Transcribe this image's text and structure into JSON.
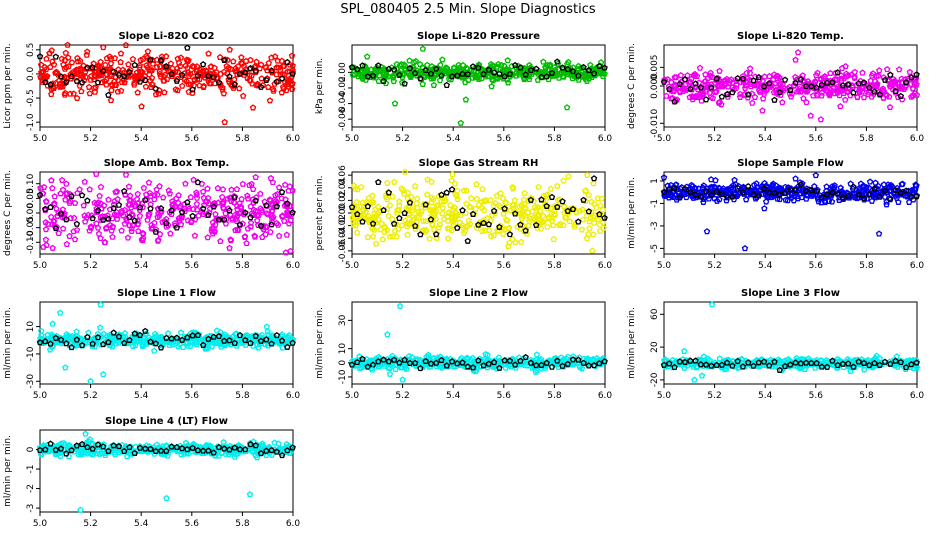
{
  "figure_title": "SPL_080405  2.5 Min. Slope Diagnostics",
  "chart_data": [
    {
      "id": "p1",
      "type": "scatter",
      "title": "Slope Li-820 CO2",
      "ylabel": "Licor ppm per min.",
      "color": "#ff0000",
      "xlim": [
        5.0,
        6.0
      ],
      "xticks": [
        5.0,
        5.2,
        5.4,
        5.6,
        5.8,
        6.0
      ],
      "xtick_labels": [
        "5.0",
        "5.2",
        "5.4",
        "5.6",
        "5.8",
        "6.0"
      ],
      "ylim": [
        -1.1,
        0.6
      ],
      "yticks": [
        -1.0,
        -0.5,
        0.0,
        0.5
      ],
      "ytick_labels": [
        "-1.0",
        "-0.5",
        "0.0",
        "0.5"
      ],
      "spread": 0.2,
      "outliers": [
        [
          5.25,
          0.55
        ],
        [
          5.75,
          0.5
        ],
        [
          5.73,
          -1.0
        ],
        [
          5.1,
          -0.4
        ]
      ]
    },
    {
      "id": "p2",
      "type": "scatter",
      "title": "Slope Li-820 Pressure",
      "ylabel": "kPa per min.",
      "color": "#00bb00",
      "xlim": [
        5.0,
        6.0
      ],
      "xticks": [
        5.0,
        5.2,
        5.4,
        5.6,
        5.8,
        6.0
      ],
      "xtick_labels": [
        "5.0",
        "5.2",
        "5.4",
        "5.6",
        "5.8",
        "6.0"
      ],
      "ylim": [
        -0.07,
        0.035
      ],
      "yticks": [
        -0.06,
        -0.04,
        -0.02,
        0.0
      ],
      "ytick_labels": [
        "-0.06",
        "-0.04",
        "-0.02",
        "0.00"
      ],
      "spread": 0.006,
      "outliers": [
        [
          5.43,
          -0.065
        ],
        [
          5.17,
          -0.04
        ],
        [
          5.45,
          -0.035
        ],
        [
          5.85,
          -0.045
        ],
        [
          5.28,
          0.03
        ],
        [
          5.06,
          0.02
        ]
      ]
    },
    {
      "id": "p3",
      "type": "scatter",
      "title": "Slope Li-820 Temp.",
      "ylabel": "degrees C per min.",
      "color": "#ee00ee",
      "xlim": [
        5.0,
        6.0
      ],
      "xticks": [
        5.0,
        5.2,
        5.4,
        5.6,
        5.8,
        6.0
      ],
      "xtick_labels": [
        "5.0",
        "5.2",
        "5.4",
        "5.6",
        "5.8",
        "6.0"
      ],
      "ylim": [
        -0.011,
        0.011
      ],
      "yticks": [
        -0.01,
        0.0,
        0.005
      ],
      "ytick_labels": [
        "-0.010",
        "0.000",
        "0.005"
      ],
      "spread": 0.002,
      "outliers": [
        [
          5.53,
          0.009
        ],
        [
          5.62,
          -0.009
        ],
        [
          5.58,
          -0.008
        ],
        [
          5.52,
          0.007
        ]
      ]
    },
    {
      "id": "p4",
      "type": "scatter",
      "title": "Slope Amb. Box Temp.",
      "ylabel": "degrees C per min.",
      "color": "#ee00ee",
      "xlim": [
        5.0,
        6.0
      ],
      "xticks": [
        5.0,
        5.2,
        5.4,
        5.6,
        5.8,
        6.0
      ],
      "xtick_labels": [
        "5.0",
        "5.2",
        "5.4",
        "5.6",
        "5.8",
        "6.0"
      ],
      "ylim": [
        -0.14,
        0.14
      ],
      "yticks": [
        -0.1,
        -0.05,
        0.0,
        0.05,
        0.1
      ],
      "ytick_labels": [
        "-0.10",
        "-0.05",
        "0.00",
        "0.05",
        "0.10"
      ],
      "spread": 0.05,
      "outliers": [
        [
          5.34,
          0.13
        ],
        [
          5.99,
          -0.13
        ],
        [
          5.05,
          -0.12
        ]
      ]
    },
    {
      "id": "p5",
      "type": "scatter",
      "title": "Slope Gas Stream RH",
      "ylabel": "percent per min.",
      "color": "#eeee00",
      "xlim": [
        5.0,
        6.0
      ],
      "xticks": [
        5.0,
        5.2,
        5.4,
        5.6,
        5.8,
        6.0
      ],
      "xtick_labels": [
        "5.0",
        "5.2",
        "5.4",
        "5.6",
        "5.8",
        "6.0"
      ],
      "ylim": [
        -0.065,
        0.065
      ],
      "yticks": [
        -0.06,
        -0.04,
        -0.02,
        0.0,
        0.02,
        0.04,
        0.06
      ],
      "ytick_labels": [
        "-0.06",
        "-0.04",
        "-0.02",
        "0.00",
        "0.02",
        "0.04",
        "0.06"
      ],
      "spread": 0.022,
      "outliers": [
        [
          5.95,
          -0.06
        ],
        [
          5.93,
          0.06
        ]
      ]
    },
    {
      "id": "p6",
      "type": "scatter",
      "title": "Slope Sample Flow",
      "ylabel": "ml/min per min.",
      "color": "#0000ee",
      "xlim": [
        5.0,
        6.0
      ],
      "xticks": [
        5.0,
        5.2,
        5.4,
        5.6,
        5.8,
        6.0
      ],
      "xtick_labels": [
        "5.0",
        "5.2",
        "5.4",
        "5.6",
        "5.8",
        "6.0"
      ],
      "ylim": [
        -5.5,
        1.8
      ],
      "yticks": [
        -5,
        -3,
        -1,
        1
      ],
      "ytick_labels": [
        "-5",
        "-3",
        "-1",
        "1"
      ],
      "spread": 0.4,
      "outliers": [
        [
          5.32,
          -5.0
        ],
        [
          5.17,
          -3.5
        ],
        [
          5.85,
          -3.7
        ],
        [
          5.52,
          1.2
        ],
        [
          5.6,
          1.5
        ],
        [
          5.0,
          1.3
        ]
      ]
    },
    {
      "id": "p7",
      "type": "scatter",
      "title": "Slope Line 1 Flow",
      "ylabel": "ml/min per min.",
      "color": "#00eeee",
      "xlim": [
        5.0,
        6.0
      ],
      "xticks": [
        5.0,
        5.2,
        5.4,
        5.6,
        5.8,
        6.0
      ],
      "xtick_labels": [
        "5.0",
        "5.2",
        "5.4",
        "5.6",
        "5.8",
        "6.0"
      ],
      "ylim": [
        -32,
        28
      ],
      "yticks": [
        -30,
        -10,
        10
      ],
      "ytick_labels": [
        "-30",
        "-10",
        "10"
      ],
      "spread": 2.5,
      "outliers": [
        [
          5.24,
          26
        ],
        [
          5.08,
          20
        ],
        [
          5.2,
          -30
        ],
        [
          5.1,
          -20
        ],
        [
          5.25,
          -25
        ],
        [
          5.05,
          12
        ]
      ]
    },
    {
      "id": "p8",
      "type": "scatter",
      "title": "Slope Line 2 Flow",
      "ylabel": "ml/min per min.",
      "color": "#00eeee",
      "xlim": [
        5.0,
        6.0
      ],
      "xticks": [
        5.0,
        5.2,
        5.4,
        5.6,
        5.8,
        6.0
      ],
      "xtick_labels": [
        "5.0",
        "5.2",
        "5.4",
        "5.6",
        "5.8",
        "6.0"
      ],
      "ylim": [
        -15,
        43
      ],
      "yticks": [
        -10,
        0,
        10,
        30
      ],
      "ytick_labels": [
        "-10",
        "0",
        "10",
        "30"
      ],
      "spread": 2.0,
      "outliers": [
        [
          5.19,
          40
        ],
        [
          5.14,
          20
        ],
        [
          5.2,
          -12
        ],
        [
          5.15,
          -8
        ],
        [
          5.08,
          -5
        ]
      ]
    },
    {
      "id": "p9",
      "type": "scatter",
      "title": "Slope Line 3 Flow",
      "ylabel": "ml/min per min.",
      "color": "#00eeee",
      "xlim": [
        5.0,
        6.0
      ],
      "xticks": [
        5.0,
        5.2,
        5.4,
        5.6,
        5.8,
        6.0
      ],
      "xtick_labels": [
        "5.0",
        "5.2",
        "5.4",
        "5.6",
        "5.8",
        "6.0"
      ],
      "ylim": [
        -25,
        75
      ],
      "yticks": [
        -20,
        20,
        60
      ],
      "ytick_labels": [
        "-20",
        "20",
        "60"
      ],
      "spread": 3.0,
      "outliers": [
        [
          5.19,
          72
        ],
        [
          5.12,
          -20
        ],
        [
          5.08,
          15
        ],
        [
          5.15,
          -15
        ]
      ]
    },
    {
      "id": "p10",
      "type": "scatter",
      "title": "Slope Line 4 (LT) Flow",
      "ylabel": "ml/min per min.",
      "color": "#00eeee",
      "xlim": [
        5.0,
        6.0
      ],
      "xticks": [
        5.0,
        5.2,
        5.4,
        5.6,
        5.8,
        6.0
      ],
      "xtick_labels": [
        "5.0",
        "5.2",
        "5.4",
        "5.6",
        "5.8",
        "6.0"
      ],
      "ylim": [
        -3.2,
        1.0
      ],
      "yticks": [
        -3,
        -2,
        -1,
        0
      ],
      "ytick_labels": [
        "-3",
        "-2",
        "-1",
        "0"
      ],
      "spread": 0.15,
      "outliers": [
        [
          5.18,
          0.8
        ],
        [
          5.5,
          -2.5
        ],
        [
          5.83,
          -2.3
        ],
        [
          5.16,
          -3.1
        ]
      ]
    }
  ]
}
